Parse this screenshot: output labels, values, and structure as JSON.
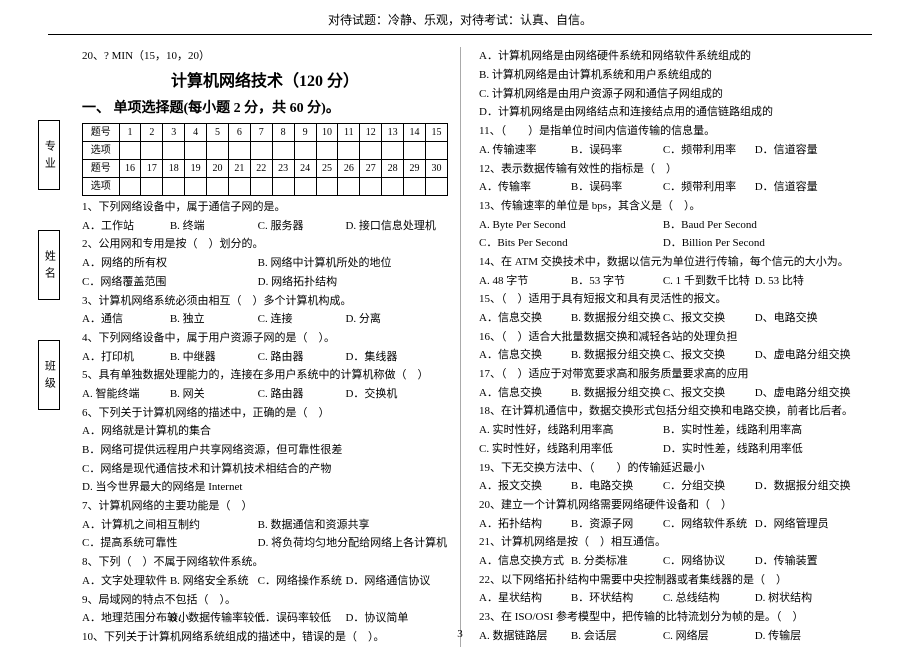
{
  "motto": "对待试题：冷静、乐观，对待考试：认真、自信。",
  "pre_line": "20、? MIN（15，10，20）",
  "title": "计算机网络技术（120 分）",
  "section1": "一、 单项选择题(每小题 2 分，共 60 分)。",
  "tabs": [
    "专业",
    "姓名",
    "班级"
  ],
  "table": {
    "rowLabels": [
      "题号",
      "选项",
      "题号",
      "选项"
    ],
    "nums1": [
      "1",
      "2",
      "3",
      "4",
      "5",
      "6",
      "7",
      "8",
      "9",
      "10",
      "11",
      "12",
      "13",
      "14",
      "15"
    ],
    "nums2": [
      "16",
      "17",
      "18",
      "19",
      "20",
      "21",
      "22",
      "23",
      "24",
      "25",
      "26",
      "27",
      "28",
      "29",
      "30"
    ]
  },
  "leftQ": [
    {
      "t": "1、下列网络设备中，属于通信子网的是。"
    },
    {
      "o": [
        "A．工作站",
        "B. 终端",
        "C. 服务器",
        "D. 接口信息处理机"
      ],
      "cls": "w4"
    },
    {
      "t": "2、公用网和专用是按（　）划分的。"
    },
    {
      "o": [
        "A．网络的所有权",
        "B. 网络中计算机所处的地位"
      ],
      "cls": "w2"
    },
    {
      "o": [
        "C．网络覆盖范围",
        "D. 网络拓扑结构"
      ],
      "cls": "w2"
    },
    {
      "t": "3、计算机网络系统必须由相互（　）多个计算机构成。"
    },
    {
      "o": [
        "A．通信",
        "B. 独立",
        "C. 连接",
        "D. 分离"
      ],
      "cls": "w4"
    },
    {
      "t": "4、下列网络设备中，属于用户资源子网的是（　）。"
    },
    {
      "o": [
        "A．打印机",
        "B. 中继器",
        "C. 路由器",
        "D．集线器"
      ],
      "cls": "w4"
    },
    {
      "t": "5、具有单独数据处理能力的，连接在多用户系统中的计算机称做（　）"
    },
    {
      "o": [
        "A. 智能终端",
        "B. 网关",
        "C. 路由器",
        "D．交换机"
      ],
      "cls": "w4"
    },
    {
      "t": "6、下列关于计算机网络的描述中，正确的是（　）"
    },
    {
      "t": "A．网络就是计算机的集合"
    },
    {
      "t": "B．网络可提供远程用户共享网络资源，但可靠性很差"
    },
    {
      "t": "C．网络是现代通信技术和计算机技术相结合的产物"
    },
    {
      "t": "D. 当今世界最大的网络是 Internet"
    },
    {
      "t": "7、计算机网络的主要功能是（　）"
    },
    {
      "o": [
        "A．计算机之间相互制约",
        "B. 数据通信和资源共享"
      ],
      "cls": "w2"
    },
    {
      "o": [
        "C．提高系统可靠性",
        "D. 将负荷均匀地分配给网络上各计算机系统"
      ],
      "cls": "w2"
    },
    {
      "t": "8、下列（　）不属于网络软件系统。"
    },
    {
      "o": [
        "A．文字处理软件",
        "B. 网络安全系统",
        "C．网络操作系统",
        "D．网络通信协议"
      ],
      "cls": "w4"
    },
    {
      "t": "9、局域网的特点不包括（　）。"
    },
    {
      "o": [
        "A．地理范围分布较小",
        "B．数据传输率较低",
        "C．误码率较低",
        "D．协议简单"
      ],
      "cls": "w4"
    },
    {
      "t": "10、下列关于计算机网络系统组成的描述中，错误的是（　）。"
    }
  ],
  "rightQ": [
    {
      "t": "A．计算机网络是由网络硬件系统和网络软件系统组成的"
    },
    {
      "t": "B. 计算机网络是由计算机系统和用户系统组成的"
    },
    {
      "t": "C. 计算机网络是由用户资源子网和通信子网组成的"
    },
    {
      "t": "D．计算机网络是由网络结点和连接结点用的通信链路组成的"
    },
    {
      "t": "11、（　　）是指单位时间内信道传输的信息量。"
    },
    {
      "o": [
        "A. 传输速率",
        "B．误码率",
        "C．频带利用率",
        "D．信道容量"
      ],
      "cls": "w4"
    },
    {
      "t": "12、表示数据传输有效性的指标是（　）"
    },
    {
      "o": [
        "A．传输率",
        "B．误码率",
        "C．频带利用率",
        "D．信道容量"
      ],
      "cls": "w4"
    },
    {
      "t": "13、传输速率的单位是 bps，其含义是（　）。"
    },
    {
      "o": [
        "A. Byte Per Second",
        "B．Baud Per Second"
      ],
      "cls": "w2"
    },
    {
      "o": [
        "C．Bits Per Second",
        "D．Billion Per Second"
      ],
      "cls": "w2"
    },
    {
      "t": "14、在 ATM 交换技术中，数据以信元为单位进行传输，每个信元的大小为。"
    },
    {
      "o": [
        "A. 48 字节",
        "B．53 字节",
        "C. 1 千到数千比特",
        "D. 53 比特"
      ],
      "cls": "w4"
    },
    {
      "t": "15、（　）适用于具有短报文和具有灵活性的报文。"
    },
    {
      "o": [
        "A．信息交换",
        "B. 数据报分组交换",
        "C、报文交换",
        "D、电路交换"
      ],
      "cls": "w4"
    },
    {
      "t": "16、（　）适合大批量数据交换和减轻各站的处理负担"
    },
    {
      "o": [
        "A．信息交换",
        "B. 数据报分组交换",
        "C、报文交换",
        "D、虚电路分组交换"
      ],
      "cls": "w4"
    },
    {
      "t": "17、（　）适应于对带宽要求高和服务质量要求高的应用"
    },
    {
      "o": [
        "A．信息交换",
        "B. 数据报分组交换",
        "C、报文交换",
        "D、虚电路分组交换"
      ],
      "cls": "w4"
    },
    {
      "t": "18、在计算机通信中，数据交换形式包括分组交换和电路交换，前者比后者。"
    },
    {
      "o": [
        "A. 实时性好，线路利用率高",
        "B．实时性差，线路利用率高"
      ],
      "cls": "w2"
    },
    {
      "o": [
        "C. 实时性好，线路利用率低",
        "D．实时性差，线路利用率低"
      ],
      "cls": "w2"
    },
    {
      "t": "19、下无交换方法中、（　　）的传输延迟最小"
    },
    {
      "o": [
        "A．报文交换",
        "B．电路交换",
        "C．分组交换",
        "D．数据报分组交换"
      ],
      "cls": "w4"
    },
    {
      "t": "20、建立一个计算机网络需要网络硬件设备和（　）"
    },
    {
      "o": [
        "A．拓扑结构",
        "B．资源子网",
        "C．网络软件系统",
        "D．网络管理员"
      ],
      "cls": "w4"
    },
    {
      "t": "21、计算机网络是按（　）相互通信。"
    },
    {
      "o": [
        "A．信息交换方式",
        "B. 分类标准",
        "C．网络协议",
        "D．传输装置"
      ],
      "cls": "w4"
    },
    {
      "t": "22、以下网络拓扑结构中需要中央控制器或者集线器的是（　）"
    },
    {
      "o": [
        "A．星状结构",
        "B．环状结构",
        "C. 总线结构",
        "D. 树状结构"
      ],
      "cls": "w4"
    },
    {
      "t": "23、在 ISO/OSI 参考模型中，把传输的比特流划分为帧的是。（　）"
    },
    {
      "o": [
        "A. 数据链路层",
        "B. 会话层",
        "C. 网络层",
        "D. 传输层"
      ],
      "cls": "w4"
    }
  ],
  "page_num": "3"
}
